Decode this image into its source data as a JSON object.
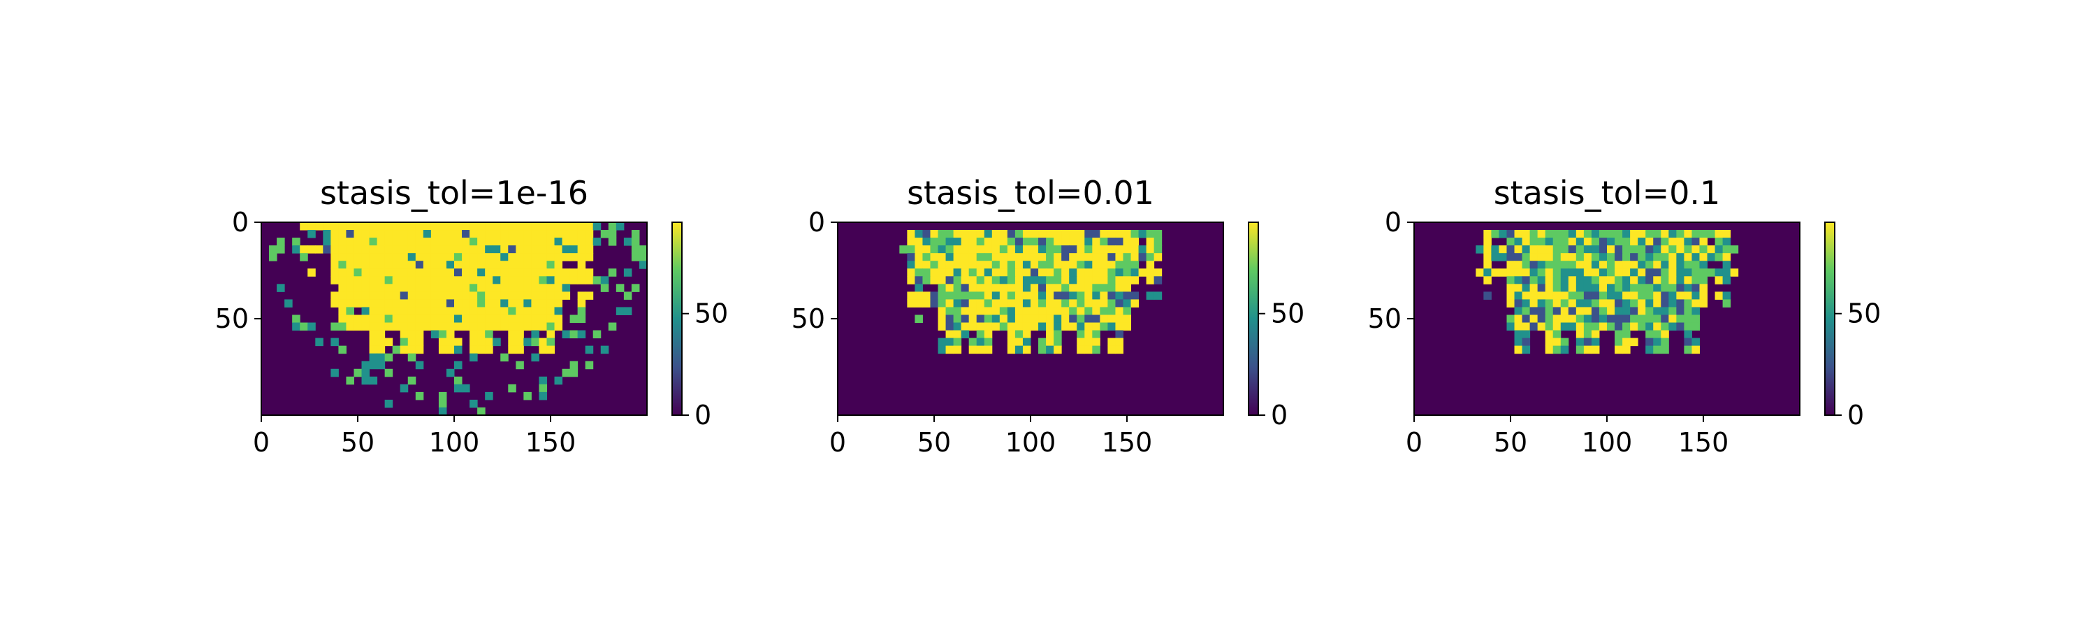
{
  "colormap": [
    "#440154",
    "#3b528b",
    "#21918c",
    "#5ec962",
    "#fde725"
  ],
  "chart_data": [
    {
      "type": "heatmap",
      "title": "stasis_tol=1e-16",
      "xlim": [
        0,
        200
      ],
      "ylim": [
        100,
        0
      ],
      "xticks": [
        0,
        50,
        100,
        150
      ],
      "yticks": [
        0,
        50
      ],
      "colorbar": {
        "range": [
          0,
          95
        ],
        "ticks": [
          0,
          50
        ]
      },
      "yellow_fraction": 0.92,
      "scatter_density": 0.45,
      "region": {
        "cx": 100,
        "y_top": 0,
        "y_bottom": 62,
        "half_width": 70,
        "scatter_extent": 100
      }
    },
    {
      "type": "heatmap",
      "title": "stasis_tol=0.01",
      "xlim": [
        0,
        200
      ],
      "ylim": [
        100,
        0
      ],
      "xticks": [
        0,
        50,
        100,
        150
      ],
      "yticks": [
        0,
        50
      ],
      "colorbar": {
        "range": [
          0,
          95
        ],
        "ticks": [
          0,
          50
        ]
      },
      "yellow_fraction": 0.55,
      "scatter_density": 0.01,
      "region": {
        "cx": 100,
        "y_top": 2,
        "y_bottom": 62,
        "half_width": 66,
        "scatter_extent": 70
      }
    },
    {
      "type": "heatmap",
      "title": "stasis_tol=0.1",
      "xlim": [
        0,
        200
      ],
      "ylim": [
        100,
        0
      ],
      "xticks": [
        0,
        50,
        100,
        150
      ],
      "yticks": [
        0,
        50
      ],
      "colorbar": {
        "range": [
          0,
          95
        ],
        "ticks": [
          0,
          50
        ]
      },
      "yellow_fraction": 0.35,
      "scatter_density": 0.0,
      "region": {
        "cx": 100,
        "y_top": 2,
        "y_bottom": 62,
        "half_width": 63,
        "scatter_extent": 65
      }
    }
  ]
}
